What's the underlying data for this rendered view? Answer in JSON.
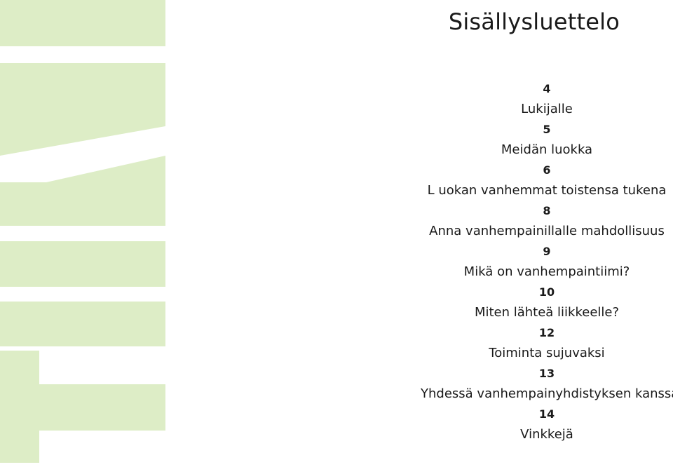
{
  "document": {
    "title": "Sisällysluettelo",
    "logo_text": "TIIMI"
  },
  "toc": [
    {
      "page": "4",
      "label": "Lukijalle"
    },
    {
      "page": "5",
      "label": "Meidän luokka"
    },
    {
      "page": "6",
      "label": "L uokan vanhemmat toistensa tukena"
    },
    {
      "page": "8",
      "label": "Anna vanhempainillalle mahdollisuus"
    },
    {
      "page": "9",
      "label": "Mikä on vanhempaintiimi?"
    },
    {
      "page": "10",
      "label": "Miten lähteä liikkeelle?"
    },
    {
      "page": "12",
      "label": "Toiminta sujuvaksi"
    },
    {
      "page": "13",
      "label": "Yhdessä vanhempainyhdistyksen kanssa"
    },
    {
      "page": "14",
      "label": "Vinkkejä"
    }
  ],
  "colors": {
    "logo_green": "#ddedc6",
    "text": "#1a1a1a"
  }
}
